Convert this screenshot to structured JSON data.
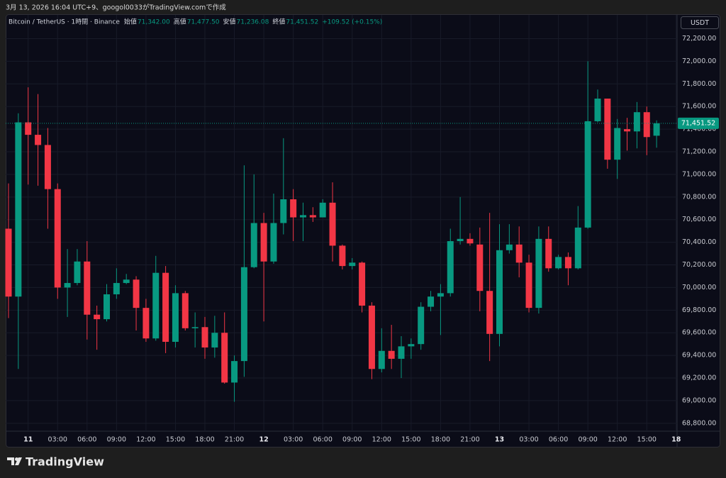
{
  "header": {
    "caption": "3月 13, 2026 16:04 UTC+9、googol0033がTradingView.comで作成"
  },
  "footer": {
    "brand": "TradingView"
  },
  "chart_data": {
    "type": "candlestick",
    "title": "Bitcoin / TetherUS · 1時間 · Binance",
    "ohlc_legend": [
      {
        "label": "始値",
        "value": "71,342.00"
      },
      {
        "label": "高値",
        "value": "71,477.50"
      },
      {
        "label": "安値",
        "value": "71,236.08"
      },
      {
        "label": "終値",
        "value": "71,451.52"
      }
    ],
    "change": "+109.52 (+0.15%)",
    "currency": "USDT",
    "last_price_label": "71,451.52",
    "up_color": "#089981",
    "down_color": "#f23645",
    "grid": true,
    "open": [
      70520,
      69920,
      71460,
      71350,
      71260,
      70870,
      70000,
      70040,
      70230,
      69760,
      69720,
      69940,
      70040,
      70070,
      69820,
      69550,
      70130,
      69520,
      69950,
      69640,
      69650,
      69470,
      69600,
      69160,
      69350,
      70180,
      70570,
      70230,
      70570,
      70780,
      70620,
      70640,
      70620,
      70750,
      70370,
      70190,
      70220,
      69840,
      69280,
      69440,
      69370,
      69480,
      69500,
      69830,
      69920,
      69950,
      70410,
      70430,
      70380,
      69970,
      69590,
      70330,
      70380,
      70220,
      69820,
      70430,
      70170,
      70270,
      70170,
      70530,
      71470,
      71670,
      71130,
      71400,
      71380,
      71550,
      71342
    ],
    "high": [
      70920,
      71540,
      71770,
      71710,
      71410,
      70920,
      70340,
      70340,
      70410,
      69840,
      70030,
      70170,
      70120,
      70100,
      69900,
      70280,
      70190,
      70020,
      69970,
      69780,
      69740,
      69750,
      69780,
      69400,
      71080,
      71000,
      70660,
      70830,
      71320,
      70870,
      70750,
      70710,
      70780,
      70930,
      70380,
      70260,
      70230,
      69870,
      69640,
      69670,
      69570,
      69550,
      69870,
      69970,
      70030,
      70520,
      70800,
      70480,
      70530,
      70660,
      70560,
      70560,
      70540,
      70290,
      70540,
      70540,
      70290,
      70310,
      70720,
      72000,
      71750,
      71670,
      71490,
      71500,
      71640,
      71600,
      71477.5
    ],
    "low": [
      69730,
      69280,
      70910,
      70900,
      70520,
      69900,
      69740,
      70020,
      69540,
      69450,
      69700,
      69900,
      70030,
      69620,
      69520,
      69530,
      69420,
      69470,
      69620,
      69470,
      69370,
      69380,
      69150,
      68990,
      69210,
      70170,
      69700,
      70210,
      70470,
      70410,
      70410,
      70580,
      70620,
      70230,
      70160,
      70160,
      69780,
      69190,
      69250,
      69280,
      69200,
      69370,
      69450,
      69790,
      69580,
      69920,
      70380,
      70370,
      69790,
      69350,
      69480,
      70300,
      70090,
      69780,
      69770,
      70140,
      70160,
      70020,
      70160,
      70520,
      71460,
      71050,
      70960,
      71210,
      71230,
      71170,
      71236.08
    ],
    "close": [
      69920,
      71460,
      71350,
      71260,
      70870,
      70000,
      70040,
      70230,
      69760,
      69720,
      69940,
      70040,
      70070,
      69820,
      69550,
      70130,
      69520,
      69950,
      69640,
      69650,
      69470,
      69600,
      69160,
      69350,
      70180,
      70570,
      70230,
      70570,
      70780,
      70620,
      70640,
      70620,
      70750,
      70370,
      70190,
      70220,
      69840,
      69280,
      69440,
      69370,
      69480,
      69500,
      69830,
      69920,
      69950,
      70410,
      70430,
      70390,
      69970,
      69590,
      70330,
      70380,
      70220,
      69820,
      70430,
      70170,
      70270,
      70170,
      70530,
      71470,
      71670,
      71130,
      71410,
      71380,
      71550,
      71330,
      71451.52
    ],
    "ylim": [
      68730,
      72410
    ],
    "yticks": [
      {
        "value": 68800,
        "label": "68,800.00"
      },
      {
        "value": 69000,
        "label": "69,000.00"
      },
      {
        "value": 69200,
        "label": "69,200.00"
      },
      {
        "value": 69400,
        "label": "69,400.00"
      },
      {
        "value": 69600,
        "label": "69,600.00"
      },
      {
        "value": 69800,
        "label": "69,800.00"
      },
      {
        "value": 70000,
        "label": "70,000.00"
      },
      {
        "value": 70200,
        "label": "70,200.00"
      },
      {
        "value": 70400,
        "label": "70,400.00"
      },
      {
        "value": 70600,
        "label": "70,600.00"
      },
      {
        "value": 70800,
        "label": "70,800.00"
      },
      {
        "value": 71000,
        "label": "71,000.00"
      },
      {
        "value": 71200,
        "label": "71,200.00"
      },
      {
        "value": 71400,
        "label": "71,400.00"
      },
      {
        "value": 71600,
        "label": "71,600.00"
      },
      {
        "value": 71800,
        "label": "71,800.00"
      },
      {
        "value": 72000,
        "label": "72,000.00"
      },
      {
        "value": 72200,
        "label": "72,200.00"
      }
    ],
    "xticks": [
      {
        "value": 2,
        "label": "11"
      },
      {
        "value": 5,
        "label": "03:00"
      },
      {
        "value": 8,
        "label": "06:00"
      },
      {
        "value": 11,
        "label": "09:00"
      },
      {
        "value": 14,
        "label": "12:00"
      },
      {
        "value": 17,
        "label": "15:00"
      },
      {
        "value": 20,
        "label": "18:00"
      },
      {
        "value": 23,
        "label": "21:00"
      },
      {
        "value": 26,
        "label": "12"
      },
      {
        "value": 29,
        "label": "03:00"
      },
      {
        "value": 32,
        "label": "06:00"
      },
      {
        "value": 35,
        "label": "09:00"
      },
      {
        "value": 38,
        "label": "12:00"
      },
      {
        "value": 41,
        "label": "15:00"
      },
      {
        "value": 44,
        "label": "18:00"
      },
      {
        "value": 47,
        "label": "21:00"
      },
      {
        "value": 50,
        "label": "13"
      },
      {
        "value": 53,
        "label": "03:00"
      },
      {
        "value": 56,
        "label": "06:00"
      },
      {
        "value": 59,
        "label": "09:00"
      },
      {
        "value": 62,
        "label": "12:00"
      },
      {
        "value": 65,
        "label": "15:00"
      },
      {
        "value": 68,
        "label": "18"
      }
    ]
  }
}
